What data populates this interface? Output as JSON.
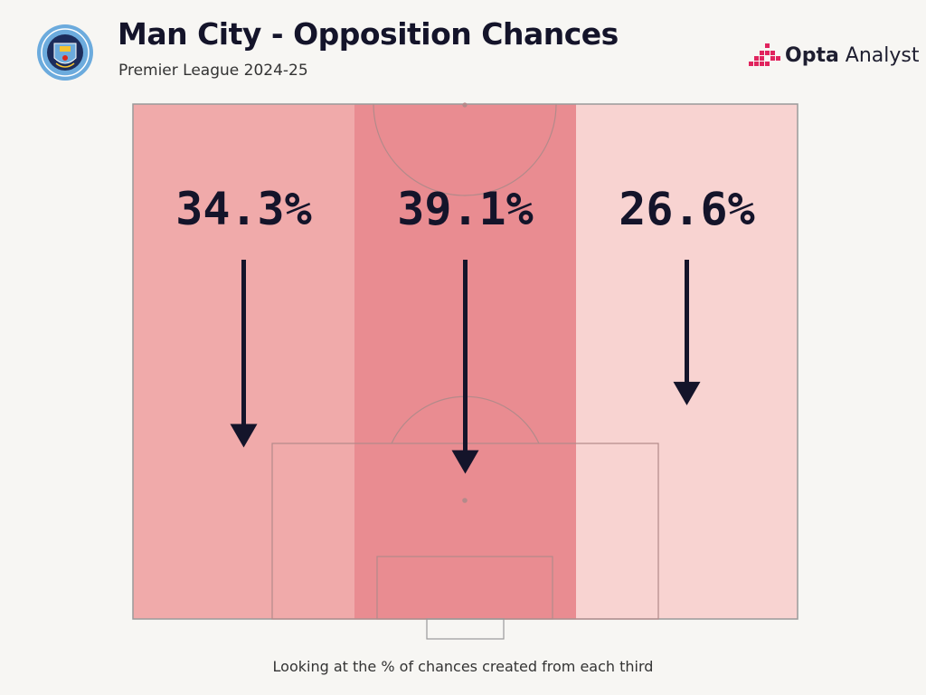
{
  "header": {
    "title": "Man City - Opposition Chances",
    "subtitle": "Premier League 2024-25",
    "crest_text": "MANCHESTER CITY",
    "brand_bold": "Opta",
    "brand_light": " Analyst"
  },
  "chart_data": {
    "type": "bar",
    "title": "Man City - Opposition Chances",
    "subtitle": "Premier League 2024-25",
    "categories": [
      "Left third",
      "Central third",
      "Right third"
    ],
    "values": [
      34.3,
      39.1,
      26.6
    ],
    "labels": [
      "34.3%",
      "39.1%",
      "26.6%"
    ],
    "unit": "%",
    "encoding": "arrow length and fill intensity",
    "colors": [
      "#f0aaaa",
      "#e98c91",
      "#f8d3d1"
    ],
    "annotation": "Looking at the % of chances created from each third"
  },
  "colors": {
    "arrow": "#14142a",
    "pitch_lines": "#b38a8a",
    "brand_accent": "#e0245e"
  }
}
